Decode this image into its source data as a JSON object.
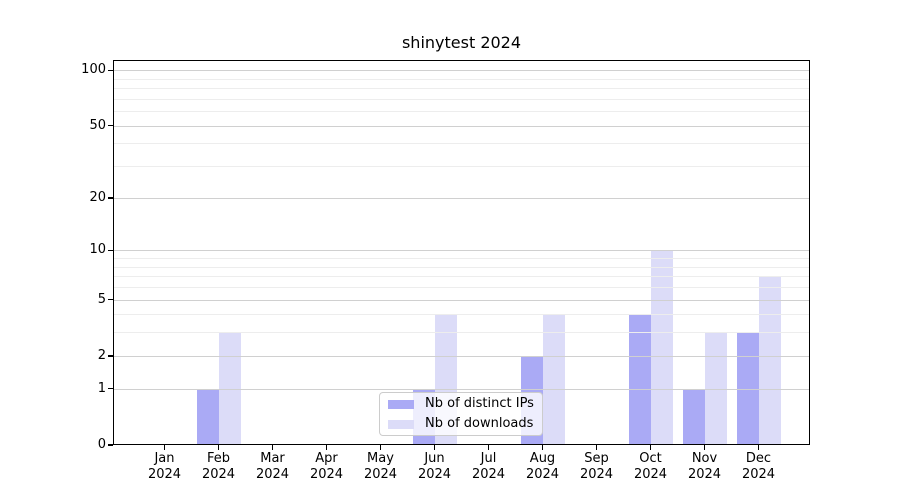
{
  "chart_data": {
    "type": "bar",
    "title": "shinytest 2024",
    "categories": [
      "Jan",
      "Feb",
      "Mar",
      "Apr",
      "May",
      "Jun",
      "Jul",
      "Aug",
      "Sep",
      "Oct",
      "Nov",
      "Dec"
    ],
    "category_year": "2024",
    "series": [
      {
        "name": "Nb of distinct IPs",
        "color": "#aaaaf5",
        "values": [
          0,
          1,
          0,
          0,
          0,
          1,
          0,
          2,
          0,
          4,
          1,
          3
        ]
      },
      {
        "name": "Nb of downloads",
        "color": "#dcdcf8",
        "values": [
          0,
          3,
          0,
          0,
          0,
          4,
          0,
          4,
          0,
          10,
          3,
          7
        ]
      }
    ],
    "yscale": "log1p",
    "ylim": [
      0,
      113
    ],
    "yticks": [
      0,
      1,
      2,
      5,
      10,
      20,
      50,
      100
    ],
    "yticks_minor": [
      3,
      4,
      6,
      7,
      8,
      9,
      30,
      40,
      60,
      70,
      80,
      90
    ],
    "xlabel": "",
    "ylabel": "",
    "grid": true,
    "legend_position": "lower center",
    "colors": {
      "grid_major": "#d0d0d0",
      "grid_minor": "#ededed",
      "spine": "#000000",
      "background": "#ffffff",
      "legend_border": "#cccccc",
      "text": "#000000"
    }
  }
}
